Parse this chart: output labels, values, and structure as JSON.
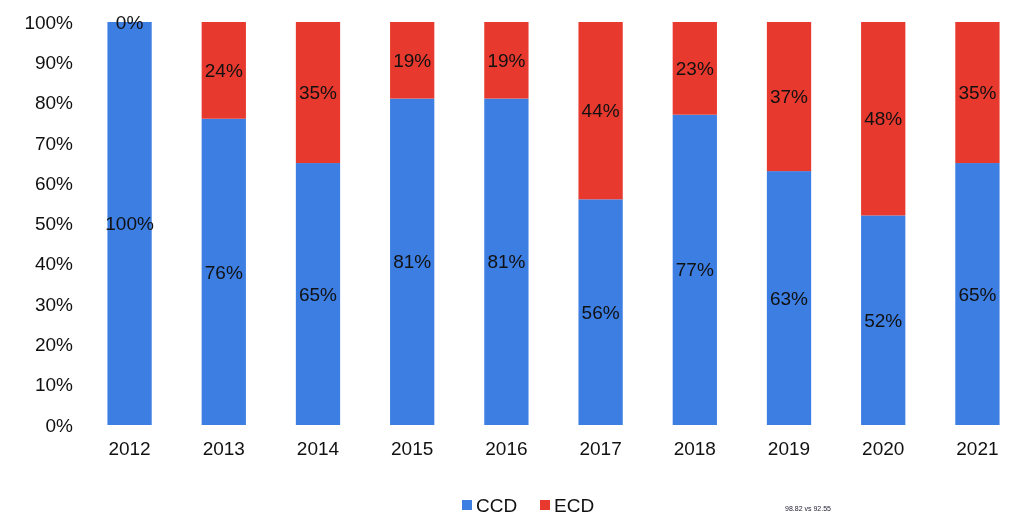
{
  "chart_data": {
    "type": "bar",
    "stacked": true,
    "categories": [
      "2012",
      "2013",
      "2014",
      "2015",
      "2016",
      "2017",
      "2018",
      "2019",
      "2020",
      "2021"
    ],
    "series": [
      {
        "name": "CCD",
        "color": "#3d7ee3",
        "values": [
          100,
          76,
          65,
          81,
          81,
          56,
          77,
          63,
          52,
          65
        ],
        "value_labels": [
          "100%",
          "76%",
          "65%",
          "81%",
          "81%",
          "56%",
          "77%",
          "63%",
          "52%",
          "65%"
        ]
      },
      {
        "name": "ECD",
        "color": "#e8392f",
        "values": [
          0,
          24,
          35,
          19,
          19,
          44,
          23,
          37,
          48,
          35
        ],
        "value_labels": [
          "0%",
          "24%",
          "35%",
          "19%",
          "19%",
          "44%",
          "23%",
          "37%",
          "48%",
          "35%"
        ]
      }
    ],
    "ylim": [
      0,
      100
    ],
    "yticks": [
      {
        "value": 0,
        "label": "0%"
      },
      {
        "value": 10,
        "label": "10%"
      },
      {
        "value": 20,
        "label": "20%"
      },
      {
        "value": 30,
        "label": "30%"
      },
      {
        "value": 40,
        "label": "40%"
      },
      {
        "value": 50,
        "label": "50%"
      },
      {
        "value": 60,
        "label": "60%"
      },
      {
        "value": 70,
        "label": "70%"
      },
      {
        "value": 80,
        "label": "80%"
      },
      {
        "value": 90,
        "label": "90%"
      },
      {
        "value": 100,
        "label": "100%"
      }
    ],
    "legend": "bottom",
    "annotations": [
      "98.82 vs 92.55"
    ]
  }
}
